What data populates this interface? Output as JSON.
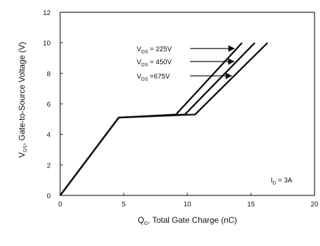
{
  "chart_data": {
    "type": "line",
    "xlabel": {
      "main": "Q",
      "sub": "G",
      "rest": ", Total Gate Charge (nC)"
    },
    "ylabel": {
      "main": "V",
      "sub": "GS",
      "rest": ", Gate-to-Source Voltage (V)"
    },
    "xlim": [
      0,
      20
    ],
    "ylim": [
      0,
      12
    ],
    "xticks": [
      "0",
      "5",
      "10",
      "15",
      "20"
    ],
    "yticks": [
      "0",
      "2",
      "4",
      "6",
      "8",
      "10",
      "12"
    ],
    "grid": false,
    "series": [
      {
        "name": "225V",
        "label_main": "V",
        "label_sub": "DS",
        "label_rest": " = 225V",
        "x": [
          0,
          4.6,
          9.1,
          14.3
        ],
        "y": [
          0,
          5.1,
          5.3,
          10
        ]
      },
      {
        "name": "450V",
        "label_main": "V",
        "label_sub": "DS",
        "label_rest": " = 450V",
        "x": [
          0,
          4.6,
          9.8,
          15.3
        ],
        "y": [
          0,
          5.1,
          5.3,
          10
        ]
      },
      {
        "name": "675V",
        "label_main": "V",
        "label_sub": "DS",
        "label_rest": " =675V",
        "x": [
          0,
          4.6,
          10.6,
          16.3
        ],
        "y": [
          0,
          5.1,
          5.3,
          10
        ]
      }
    ],
    "condition": {
      "main": "I",
      "sub": "D",
      "rest": " = 3A"
    }
  }
}
